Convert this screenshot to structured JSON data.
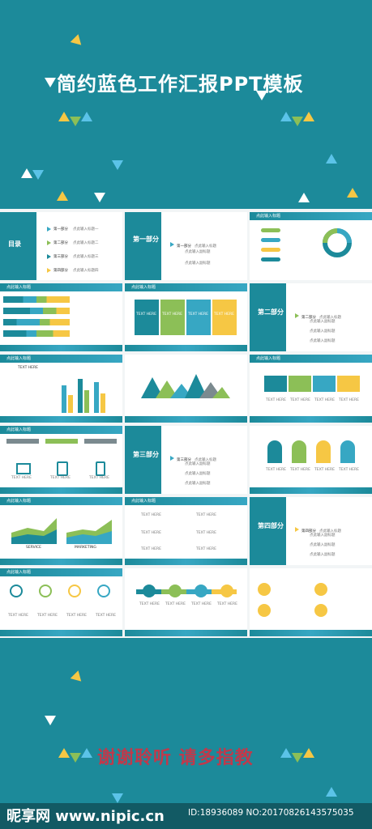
{
  "hero": {
    "title": "简约蓝色工作汇报PPT模板"
  },
  "colors": {
    "teal": "#1c8a9a",
    "blue": "#37a7c3",
    "green": "#8cbf57",
    "yellow": "#f6c744",
    "grey": "#7b8a8f",
    "red": "#c0394b"
  },
  "slides": {
    "toc": {
      "title": "目录",
      "items": [
        "第一部分",
        "第二部分",
        "第三部分",
        "第四部分"
      ],
      "subs": [
        "点此输入标题一",
        "点此输入标题二",
        "点此输入标题三",
        "点此输入标题四"
      ]
    },
    "part1": {
      "label": "第一部分",
      "title": "第一部分",
      "sub1": "点此输入标题",
      "sub2": "点此输入副标题",
      "sub3": "点此输入副标题"
    },
    "part2": {
      "label": "第二部分",
      "title": "第二部分",
      "sub": "点此输入标题",
      "sub2": "点此输入副标题"
    },
    "part3": {
      "label": "第三部分",
      "title": "第三部分",
      "sub": "点此输入标题",
      "sub2": "点此输入副标题"
    },
    "part4": {
      "label": "第四部分",
      "title": "第四部分",
      "sub": "点此输入标题",
      "sub2": "点此输入副标题"
    },
    "header": "点此输入标题",
    "text_here": "TEXT HERE",
    "service": "SERVICE",
    "marketing": "MARKETING"
  },
  "bottom": {
    "thanks": "谢谢聆听  请多指教"
  },
  "watermark": {
    "logo": "昵享网 www.nipic.cn",
    "id": "ID:18936089 NO:20170826143575035"
  }
}
